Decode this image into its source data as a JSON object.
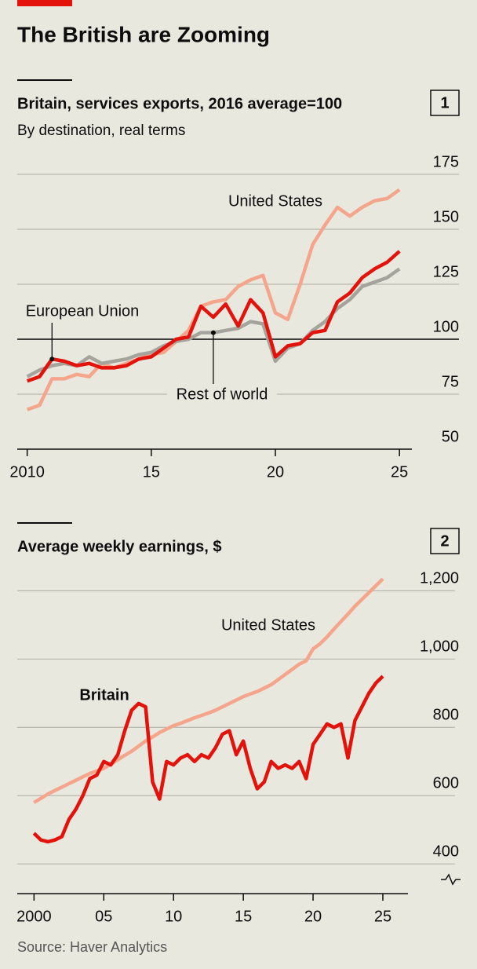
{
  "title": "The British are Zooming",
  "source": "Source: Haver Analytics",
  "chart_data": [
    {
      "type": "line",
      "panel": "1",
      "title": "Britain, services exports, 2016 average=100",
      "subtitle": "By destination, real terms",
      "x": [
        2010,
        2010.5,
        2011,
        2011.5,
        2012,
        2012.5,
        2013,
        2013.5,
        2014,
        2014.5,
        2015,
        2015.5,
        2016,
        2016.5,
        2017,
        2017.5,
        2018,
        2018.5,
        2019,
        2019.5,
        2020,
        2020.5,
        2021,
        2021.5,
        2022,
        2022.5,
        2023,
        2023.5,
        2024,
        2024.5,
        2025
      ],
      "xlim": [
        2009.6,
        2025.5
      ],
      "xticks": [
        2010,
        {
          "value": 2015,
          "label": "15"
        },
        {
          "value": 2020,
          "label": "20"
        },
        {
          "value": 2025,
          "label": "25"
        }
      ],
      "ylim": [
        50,
        175
      ],
      "yticks": [
        50,
        75,
        100,
        125,
        150,
        175
      ],
      "baseline": 100,
      "grid": true,
      "series": [
        {
          "name": "United States",
          "color": "#f5a58b",
          "values": [
            68,
            70,
            82,
            82,
            84,
            83,
            89,
            87,
            89,
            91,
            93,
            94,
            99,
            104,
            115,
            117,
            118,
            124,
            127,
            129,
            112,
            109,
            125,
            143,
            152,
            160,
            156,
            160,
            163,
            164,
            168
          ]
        },
        {
          "name": "Rest of world",
          "color": "#a5a49c",
          "values": [
            83,
            86,
            88,
            89,
            88,
            92,
            89,
            90,
            91,
            93,
            94,
            97,
            99,
            100,
            103,
            103,
            104,
            105,
            108,
            107,
            90,
            96,
            98,
            104,
            108,
            114,
            118,
            124,
            126,
            128,
            132
          ]
        },
        {
          "name": "European Union",
          "color": "#e3120b",
          "values": [
            81,
            83,
            91,
            90,
            88,
            89,
            87,
            87,
            88,
            91,
            92,
            96,
            100,
            101,
            115,
            110,
            116,
            106,
            118,
            112,
            92,
            97,
            98,
            103,
            104,
            117,
            121,
            128,
            132,
            135,
            140
          ]
        }
      ]
    },
    {
      "type": "line",
      "panel": "2",
      "title": "Average weekly earnings, $",
      "x": [
        2000,
        2000.5,
        2001,
        2001.5,
        2002,
        2002.5,
        2003,
        2003.5,
        2004,
        2004.5,
        2005,
        2005.5,
        2006,
        2006.5,
        2007,
        2007.5,
        2008,
        2008.5,
        2009,
        2009.5,
        2010,
        2010.5,
        2011,
        2011.5,
        2012,
        2012.5,
        2013,
        2013.5,
        2014,
        2014.5,
        2015,
        2015.5,
        2016,
        2016.5,
        2017,
        2017.5,
        2018,
        2018.5,
        2019,
        2019.5,
        2020,
        2020.5,
        2021,
        2021.5,
        2022,
        2022.5,
        2023,
        2023.5,
        2024,
        2024.5,
        2025
      ],
      "xlim": [
        1998.8,
        2026.8
      ],
      "xticks": [
        2000,
        {
          "value": 2005,
          "label": "05"
        },
        {
          "value": 2010,
          "label": "10"
        },
        {
          "value": 2015,
          "label": "15"
        },
        {
          "value": 2020,
          "label": "20"
        },
        {
          "value": 2025,
          "label": "25"
        }
      ],
      "ylim": [
        313,
        1240
      ],
      "yticks": [
        400,
        600,
        800,
        {
          "value": 1000,
          "label": "1,000"
        },
        {
          "value": 1200,
          "label": "1,200"
        }
      ],
      "grid": true,
      "series": [
        {
          "name": "United States",
          "color": "#f5a58b",
          "values": [
            580,
            592,
            605,
            615,
            625,
            635,
            645,
            655,
            665,
            672,
            680,
            692,
            705,
            718,
            730,
            745,
            760,
            772,
            785,
            795,
            805,
            812,
            820,
            828,
            835,
            842,
            850,
            860,
            870,
            880,
            890,
            898,
            905,
            915,
            925,
            940,
            955,
            970,
            985,
            995,
            1030,
            1045,
            1065,
            1088,
            1110,
            1132,
            1155,
            1175,
            1195,
            1215,
            1235
          ]
        },
        {
          "name": "Britain",
          "color": "#e3120b",
          "values": [
            490,
            470,
            465,
            470,
            480,
            530,
            560,
            600,
            650,
            660,
            700,
            690,
            720,
            790,
            850,
            870,
            860,
            640,
            590,
            700,
            690,
            710,
            720,
            700,
            720,
            710,
            740,
            780,
            790,
            720,
            760,
            680,
            620,
            640,
            700,
            680,
            690,
            680,
            700,
            650,
            750,
            780,
            810,
            800,
            810,
            710,
            820,
            860,
            900,
            930,
            950
          ]
        }
      ]
    }
  ]
}
